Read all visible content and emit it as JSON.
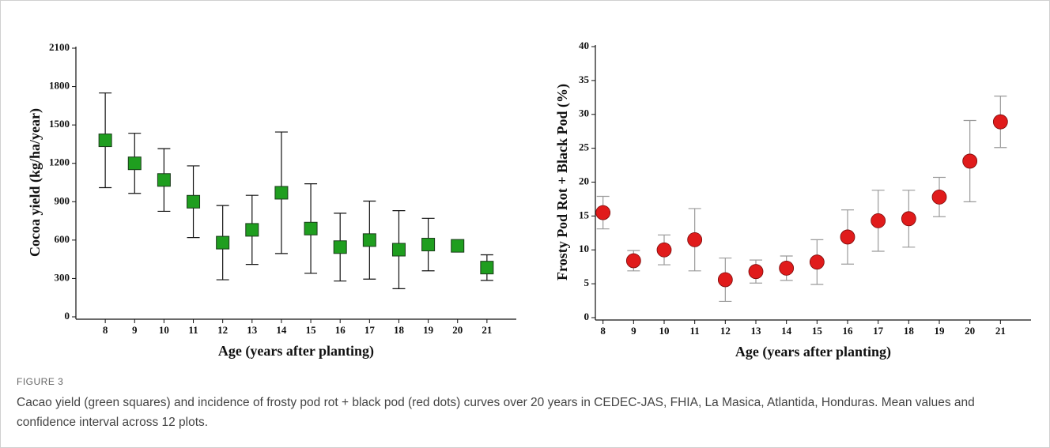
{
  "figure": {
    "label": "FIGURE 3",
    "caption": "Cacao yield (green squares) and incidence of frosty pod rot + black pod (red dots) curves over 20 years in CEDEC-JAS, FHIA, La Masica, Atlantida, Honduras. Mean values and confidence interval across 12 plots."
  },
  "chart_data": [
    {
      "type": "scatter",
      "marker": "square",
      "color": "#1f9e1f",
      "error_color": "#111111",
      "x_label": "Age (years after planting)",
      "y_label": "Cocoa yield (kg/ha/year)",
      "x": [
        8,
        9,
        10,
        11,
        12,
        13,
        14,
        15,
        16,
        17,
        18,
        19,
        20,
        21
      ],
      "values": [
        1380,
        1200,
        1070,
        900,
        580,
        680,
        970,
        690,
        545,
        600,
        525,
        565,
        555,
        385
      ],
      "errors": [
        370,
        235,
        245,
        280,
        290,
        270,
        475,
        350,
        265,
        305,
        305,
        205,
        30,
        100
      ],
      "xlim": [
        7,
        22
      ],
      "xticks": [
        8,
        9,
        10,
        11,
        12,
        13,
        14,
        15,
        16,
        17,
        18,
        19,
        20,
        21
      ],
      "ylim": [
        0,
        2100
      ],
      "yticks": [
        0,
        300,
        600,
        900,
        1200,
        1500,
        1800,
        2100
      ]
    },
    {
      "type": "scatter",
      "marker": "circle",
      "color": "#e01b1b",
      "error_color": "#9a9a9a",
      "x_label": "Age (years after planting)",
      "y_label": "Frosty Pod Rot + Black Pod (%)",
      "x": [
        8,
        9,
        10,
        11,
        12,
        13,
        14,
        15,
        16,
        17,
        18,
        19,
        20,
        21
      ],
      "values": [
        15.5,
        8.4,
        10,
        11.5,
        5.6,
        6.8,
        7.3,
        8.2,
        11.9,
        14.3,
        14.6,
        17.8,
        23.1,
        28.9
      ],
      "errors": [
        2.4,
        1.5,
        2.2,
        4.6,
        3.2,
        1.7,
        1.8,
        3.3,
        4,
        4.5,
        4.2,
        2.9,
        6,
        3.8
      ],
      "xlim": [
        7.75,
        22
      ],
      "xticks": [
        8,
        9,
        10,
        11,
        12,
        13,
        14,
        15,
        16,
        17,
        18,
        19,
        20,
        21
      ],
      "ylim": [
        0,
        40
      ],
      "yticks": [
        0,
        5,
        10,
        15,
        20,
        25,
        30,
        35,
        40
      ]
    }
  ]
}
